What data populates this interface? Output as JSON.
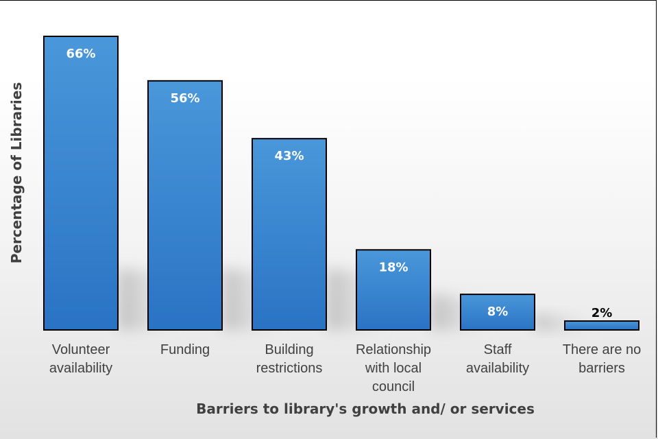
{
  "chart_data": {
    "type": "bar",
    "title": "",
    "xlabel": "Barriers to library's growth and/ or services",
    "ylabel": "Percentage of Libraries",
    "ylim": [
      0,
      70
    ],
    "grid": false,
    "legend": "none",
    "categories": [
      [
        "Volunteer",
        "availability"
      ],
      [
        "Funding"
      ],
      [
        "Building",
        "restrictions"
      ],
      [
        "Relationship",
        "with local",
        "council"
      ],
      [
        "Staff",
        "availability"
      ],
      [
        "There are no",
        "barriers"
      ]
    ],
    "values": [
      66,
      56,
      43,
      18,
      8,
      2
    ],
    "data_labels": [
      "66%",
      "56%",
      "43%",
      "18%",
      "8%",
      "2%"
    ],
    "colors": {
      "bar_top": "#4a97da",
      "bar_bottom": "#2a73c4",
      "bar_stroke": "#000000",
      "label_inside": "#ffffff",
      "label_outside": "#000000"
    }
  }
}
